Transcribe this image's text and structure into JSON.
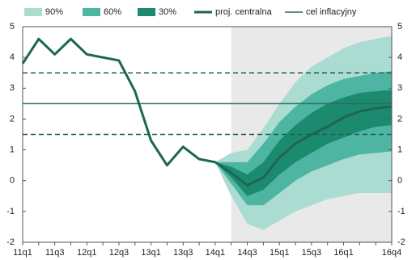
{
  "chart_data": {
    "type": "fan",
    "categories": [
      "11q1",
      null,
      "11q3",
      null,
      "12q1",
      null,
      "12q3",
      null,
      "13q1",
      null,
      "13q3",
      null,
      "14q1",
      null,
      "14q3",
      null,
      "15q1",
      null,
      "15q3",
      null,
      "16q1",
      null,
      null,
      "16q4"
    ],
    "series": [
      {
        "name": "90%",
        "color": "#abdcd2",
        "high": [
          null,
          null,
          null,
          null,
          null,
          null,
          null,
          null,
          null,
          null,
          null,
          null,
          0.6,
          0.9,
          1.0,
          1.7,
          2.5,
          3.2,
          3.7,
          4.0,
          4.3,
          4.5,
          4.6,
          4.7
        ],
        "low": [
          null,
          null,
          null,
          null,
          null,
          null,
          null,
          null,
          null,
          null,
          null,
          null,
          0.6,
          -0.5,
          -1.4,
          -1.6,
          -1.3,
          -1.0,
          -0.8,
          -0.6,
          -0.5,
          -0.4,
          -0.4,
          -0.4
        ]
      },
      {
        "name": "60%",
        "color": "#4db5a1",
        "high": [
          null,
          null,
          null,
          null,
          null,
          null,
          null,
          null,
          null,
          null,
          null,
          null,
          0.6,
          0.6,
          0.6,
          1.2,
          1.9,
          2.4,
          2.8,
          3.1,
          3.3,
          3.4,
          3.5,
          3.55
        ],
        "low": [
          null,
          null,
          null,
          null,
          null,
          null,
          null,
          null,
          null,
          null,
          null,
          null,
          0.6,
          -0.1,
          -0.8,
          -0.8,
          -0.4,
          0.0,
          0.3,
          0.5,
          0.7,
          0.85,
          0.9,
          0.95
        ]
      },
      {
        "name": "30%",
        "color": "#1b8a6f",
        "high": [
          null,
          null,
          null,
          null,
          null,
          null,
          null,
          null,
          null,
          null,
          null,
          null,
          0.6,
          0.45,
          0.2,
          0.6,
          1.3,
          1.8,
          2.2,
          2.5,
          2.7,
          2.85,
          2.9,
          2.95
        ],
        "low": [
          null,
          null,
          null,
          null,
          null,
          null,
          null,
          null,
          null,
          null,
          null,
          null,
          0.6,
          0.1,
          -0.5,
          -0.3,
          0.2,
          0.6,
          0.9,
          1.2,
          1.4,
          1.6,
          1.75,
          1.8
        ]
      },
      {
        "name": "proj. centralna",
        "color": "#1e6654",
        "values": [
          3.8,
          4.6,
          4.1,
          4.6,
          4.1,
          4.0,
          3.9,
          2.9,
          1.3,
          0.5,
          1.1,
          0.7,
          0.6,
          0.25,
          -0.15,
          0.1,
          0.75,
          1.2,
          1.5,
          1.75,
          2.05,
          2.25,
          2.35,
          2.4
        ]
      },
      {
        "name": "cel inflacyjny",
        "color": "#2a6d5c",
        "value": 2.5
      }
    ],
    "tolerance_band": [
      1.5,
      3.5
    ],
    "ylim": [
      -2,
      5
    ],
    "yticks": [
      -2,
      -1,
      0,
      1,
      2,
      3,
      4,
      5
    ],
    "y2lim": [
      -2,
      5
    ],
    "y2ticks": [
      -2,
      -1,
      0,
      1,
      2,
      3,
      4,
      5
    ]
  }
}
